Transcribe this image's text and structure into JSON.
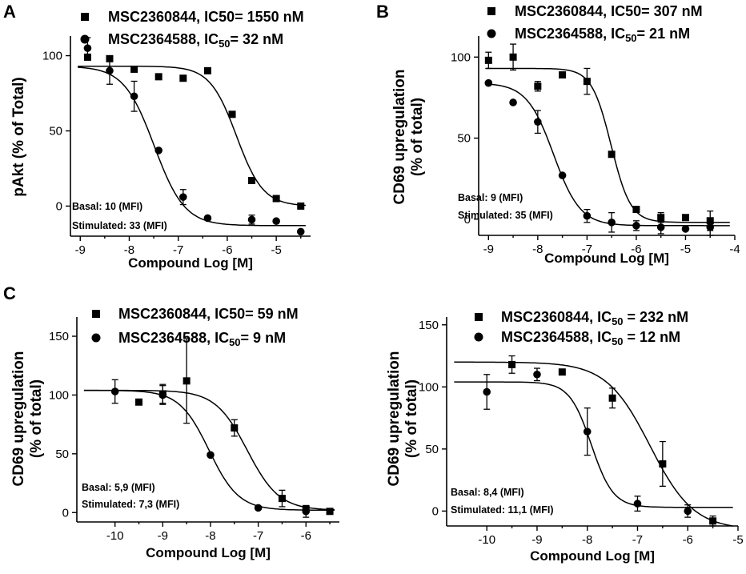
{
  "chart_data": [
    {
      "id": "A",
      "type": "scatter",
      "panel_label": "A",
      "xlabel": "Compound Log [M]",
      "ylabel": "pAkt (% of Total)",
      "ylabel_lines": [
        "pAkt (% of Total)"
      ],
      "xlim": [
        -9.2,
        -4.3
      ],
      "ylim": [
        -20,
        112
      ],
      "xticks": [
        -9,
        -8,
        -7,
        -6,
        -5
      ],
      "yticks": [
        0,
        50,
        100
      ],
      "annotations": [
        "Basal: 10 (MFI)",
        "Stimulated: 33 (MFI)"
      ],
      "series": [
        {
          "name": "MSC2360844",
          "legend_parts": [
            {
              "t": "MSC2360844, IC50= 1550 nM"
            }
          ],
          "marker": "square",
          "fit": {
            "top": 93,
            "bottom": 0,
            "logic50": -5.81,
            "hill": 1.6
          },
          "points": [
            {
              "x": -8.85,
              "y": 99,
              "err": 0
            },
            {
              "x": -8.4,
              "y": 98,
              "err": 0
            },
            {
              "x": -7.9,
              "y": 91,
              "err": 0
            },
            {
              "x": -7.4,
              "y": 86,
              "err": 0
            },
            {
              "x": -6.9,
              "y": 85,
              "err": 0
            },
            {
              "x": -6.4,
              "y": 90,
              "err": 0
            },
            {
              "x": -5.9,
              "y": 61,
              "err": 0
            },
            {
              "x": -5.5,
              "y": 17,
              "err": 0
            },
            {
              "x": -5.0,
              "y": 5,
              "err": 0
            },
            {
              "x": -4.5,
              "y": 0,
              "err": 0
            }
          ]
        },
        {
          "name": "MSC2364588",
          "legend_parts": [
            {
              "t": "MSC2364588, IC"
            },
            {
              "t": "50",
              "sub": true
            },
            {
              "t": "= 32 nM"
            }
          ],
          "marker": "circle",
          "fit": {
            "top": 93,
            "bottom": -13,
            "logic50": -7.49,
            "hill": 1.4
          },
          "points": [
            {
              "x": -8.85,
              "y": 105,
              "err": 7
            },
            {
              "x": -8.4,
              "y": 90,
              "err": 9
            },
            {
              "x": -7.9,
              "y": 73,
              "err": 10
            },
            {
              "x": -7.4,
              "y": 37,
              "err": 0
            },
            {
              "x": -6.9,
              "y": 6,
              "err": 5
            },
            {
              "x": -6.4,
              "y": -8,
              "err": 0
            },
            {
              "x": -5.5,
              "y": -9,
              "err": 3
            },
            {
              "x": -5.0,
              "y": -10,
              "err": 0
            },
            {
              "x": -4.5,
              "y": -17,
              "err": 0
            }
          ]
        }
      ]
    },
    {
      "id": "B",
      "type": "scatter",
      "panel_label": "B",
      "xlabel": "Compound Log [M]",
      "ylabel": "CD69 upregulation (% of total)",
      "ylabel_lines": [
        "CD69 upregulation",
        "(% of total)"
      ],
      "xlim": [
        -9.2,
        -4.0
      ],
      "ylim": [
        -10,
        112
      ],
      "xticks": [
        -9,
        -8,
        -7,
        -6,
        -5,
        -4
      ],
      "yticks": [
        0,
        50,
        100
      ],
      "annotations": [
        "Basal: 9 (MFI)",
        "Stimulated: 35 (MFI)"
      ],
      "series": [
        {
          "name": "MSC2360844",
          "legend_parts": [
            {
              "t": "MSC2360844, IC50= 307 nM"
            }
          ],
          "marker": "square",
          "fit": {
            "top": 93,
            "bottom": -2,
            "logic50": -6.51,
            "hill": 2.2
          },
          "points": [
            {
              "x": -9.0,
              "y": 98,
              "err": 5
            },
            {
              "x": -8.5,
              "y": 100,
              "err": 8
            },
            {
              "x": -8.0,
              "y": 82,
              "err": 3
            },
            {
              "x": -7.5,
              "y": 89,
              "err": 0
            },
            {
              "x": -7.0,
              "y": 85,
              "err": 8
            },
            {
              "x": -6.5,
              "y": 40,
              "err": 0
            },
            {
              "x": -6.0,
              "y": 6,
              "err": 0
            },
            {
              "x": -5.5,
              "y": 1,
              "err": 3
            },
            {
              "x": -5.0,
              "y": 1,
              "err": 0
            },
            {
              "x": -4.5,
              "y": -1,
              "err": 6
            }
          ]
        },
        {
          "name": "MSC2364588",
          "legend_parts": [
            {
              "t": "MSC2364588, IC"
            },
            {
              "t": "50",
              "sub": true
            },
            {
              "t": "= 21 nM"
            }
          ],
          "marker": "circle",
          "fit": {
            "top": 84,
            "bottom": -4,
            "logic50": -7.68,
            "hill": 1.6
          },
          "points": [
            {
              "x": -9.0,
              "y": 84,
              "err": 0
            },
            {
              "x": -8.5,
              "y": 72,
              "err": 0
            },
            {
              "x": -8.0,
              "y": 60,
              "err": 7
            },
            {
              "x": -7.5,
              "y": 27,
              "err": 0
            },
            {
              "x": -7.0,
              "y": 2,
              "err": 4
            },
            {
              "x": -6.5,
              "y": -2,
              "err": 6
            },
            {
              "x": -6.0,
              "y": -4,
              "err": 3
            },
            {
              "x": -5.5,
              "y": -5,
              "err": 4
            },
            {
              "x": -5.0,
              "y": -6,
              "err": 0
            },
            {
              "x": -4.5,
              "y": -5,
              "err": 5
            }
          ]
        }
      ]
    },
    {
      "id": "C1",
      "type": "scatter",
      "panel_label": "C",
      "xlabel": "Compound Log [M]",
      "ylabel": "CD69 upregulation (% of total)",
      "ylabel_lines": [
        "CD69 upregulation",
        "(% of total)"
      ],
      "xlim": [
        -10.8,
        -5.3
      ],
      "ylim": [
        -8,
        165
      ],
      "xticks": [
        -10,
        -9,
        -8,
        -7,
        -6
      ],
      "yticks": [
        0,
        50,
        100,
        150
      ],
      "annotations": [
        "Basal: 5,9 (MFI)",
        "Stimulated: 7,3 (MFI)"
      ],
      "series": [
        {
          "name": "MSC2360844",
          "legend_parts": [
            {
              "t": "MSC2360844, IC50= 59 nM"
            }
          ],
          "marker": "square",
          "fit": {
            "top": 104,
            "bottom": 2,
            "logic50": -7.23,
            "hill": 1.3
          },
          "points": [
            {
              "x": -9.5,
              "y": 94,
              "err": 0
            },
            {
              "x": -9.0,
              "y": 101,
              "err": 8
            },
            {
              "x": -8.5,
              "y": 112,
              "err": 36
            },
            {
              "x": -7.5,
              "y": 72,
              "err": 7
            },
            {
              "x": -6.5,
              "y": 12,
              "err": 7
            },
            {
              "x": -6.0,
              "y": 3,
              "err": 0
            },
            {
              "x": -5.5,
              "y": 1,
              "err": 0
            }
          ]
        },
        {
          "name": "MSC2364588",
          "legend_parts": [
            {
              "t": "MSC2364588, IC"
            },
            {
              "t": "50",
              "sub": true
            },
            {
              "t": "= 9 nM"
            }
          ],
          "marker": "circle",
          "fit": {
            "top": 104,
            "bottom": 2,
            "logic50": -8.03,
            "hill": 1.4
          },
          "points": [
            {
              "x": -10.0,
              "y": 103,
              "err": 10
            },
            {
              "x": -9.0,
              "y": 100,
              "err": 8
            },
            {
              "x": -8.0,
              "y": 49,
              "err": 0
            },
            {
              "x": -7.0,
              "y": 4,
              "err": 0
            },
            {
              "x": -6.0,
              "y": 1,
              "err": 5
            }
          ]
        }
      ]
    },
    {
      "id": "C2",
      "type": "scatter",
      "panel_label": "",
      "xlabel": "Compound Log [M]",
      "ylabel": "CD69 upregulation (% of total)",
      "ylabel_lines": [
        "CD69 upregulation",
        "(% of total)"
      ],
      "xlim": [
        -10.8,
        -5.0
      ],
      "ylim": [
        -12,
        155
      ],
      "xticks": [
        -10,
        -9,
        -8,
        -7,
        -6,
        -5
      ],
      "yticks": [
        0,
        50,
        100,
        150
      ],
      "annotations": [
        "Basal: 8,4 (MFI)",
        "Stimulated: 11,1 (MFI)"
      ],
      "series": [
        {
          "name": "MSC2360844",
          "legend_parts": [
            {
              "t": "MSC2360844, IC"
            },
            {
              "t": "50",
              "sub": true
            },
            {
              "t": " = 232 nM"
            }
          ],
          "marker": "square",
          "fit": {
            "top": 120,
            "bottom": -15,
            "logic50": -6.75,
            "hill": 1.0
          },
          "points": [
            {
              "x": -9.5,
              "y": 118,
              "err": 7
            },
            {
              "x": -8.5,
              "y": 112,
              "err": 0
            },
            {
              "x": -7.5,
              "y": 91,
              "err": 8
            },
            {
              "x": -6.5,
              "y": 38,
              "err": 18
            },
            {
              "x": -5.5,
              "y": -8,
              "err": 4
            }
          ]
        },
        {
          "name": "MSC2364588",
          "legend_parts": [
            {
              "t": "MSC2364588, IC"
            },
            {
              "t": "50",
              "sub": true
            },
            {
              "t": " = 12 nM"
            }
          ],
          "marker": "circle",
          "fit": {
            "top": 104,
            "bottom": 3,
            "logic50": -7.92,
            "hill": 2.0
          },
          "points": [
            {
              "x": -10.0,
              "y": 96,
              "err": 14
            },
            {
              "x": -9.0,
              "y": 110,
              "err": 5
            },
            {
              "x": -8.0,
              "y": 64,
              "err": 19
            },
            {
              "x": -7.0,
              "y": 6,
              "err": 6
            },
            {
              "x": -6.0,
              "y": 0,
              "err": 5
            }
          ]
        }
      ]
    }
  ]
}
